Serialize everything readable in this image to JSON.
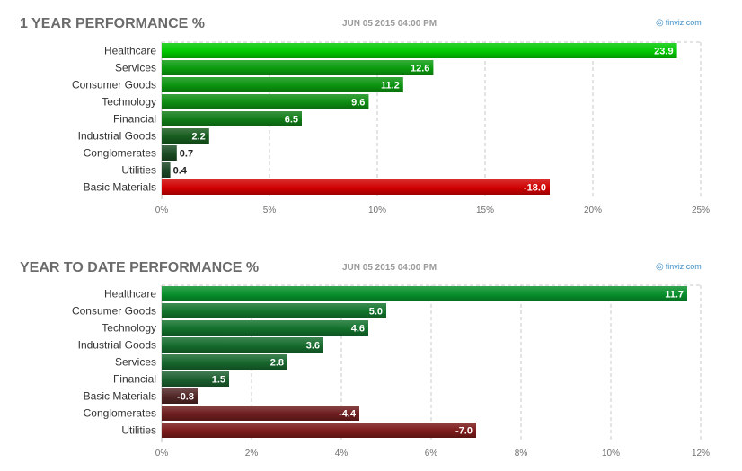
{
  "panels": [
    {
      "title": "1 YEAR PERFORMANCE %",
      "timestamp": "JUN 05 2015 04:00 PM",
      "source": "finviz.com",
      "source_icon": "finviz-logo-icon"
    },
    {
      "title": "YEAR TO DATE PERFORMANCE %",
      "timestamp": "JUN 05 2015 04:00 PM",
      "source": "finviz.com",
      "source_icon": "finviz-logo-icon"
    }
  ],
  "chart_data": [
    {
      "type": "bar",
      "orientation": "horizontal",
      "title": "1 YEAR PERFORMANCE %",
      "categories": [
        "Healthcare",
        "Services",
        "Consumer Goods",
        "Technology",
        "Financial",
        "Industrial Goods",
        "Conglomerates",
        "Utilities",
        "Basic Materials"
      ],
      "values": [
        23.9,
        12.6,
        11.2,
        9.6,
        6.5,
        2.2,
        0.7,
        0.4,
        -18.0
      ],
      "value_labels": [
        "23.9",
        "12.6",
        "11.2",
        "9.6",
        "6.5",
        "2.2",
        "0.7",
        "0.4",
        "-18.0"
      ],
      "xlim": [
        0,
        25
      ],
      "xticks": [
        0,
        5,
        10,
        15,
        20,
        25
      ],
      "xtick_labels": [
        "0%",
        "5%",
        "10%",
        "15%",
        "20%",
        "25%"
      ],
      "bar_length": "absolute value",
      "grid": true,
      "colors": {
        "positive_strong": "#00c800",
        "positive_weak": "#1e3a28",
        "negative": "#d10000"
      }
    },
    {
      "type": "bar",
      "orientation": "horizontal",
      "title": "YEAR TO DATE PERFORMANCE %",
      "categories": [
        "Healthcare",
        "Consumer Goods",
        "Technology",
        "Industrial Goods",
        "Services",
        "Financial",
        "Basic Materials",
        "Conglomerates",
        "Utilities"
      ],
      "values": [
        11.7,
        5.0,
        4.6,
        3.6,
        2.8,
        1.5,
        -0.8,
        -4.4,
        -7.0
      ],
      "value_labels": [
        "11.7",
        "5.0",
        "4.6",
        "3.6",
        "2.8",
        "1.5",
        "-0.8",
        "-4.4",
        "-7.0"
      ],
      "xlim": [
        0,
        12
      ],
      "xticks": [
        0,
        2,
        4,
        6,
        8,
        10,
        12
      ],
      "xtick_labels": [
        "0%",
        "2%",
        "4%",
        "6%",
        "8%",
        "10%",
        "12%"
      ],
      "bar_length": "absolute value",
      "grid": true,
      "colors": {
        "positive_strong": "#078f2a",
        "positive_weak": "#234a2f",
        "negative": "#7c1b1b"
      }
    }
  ]
}
